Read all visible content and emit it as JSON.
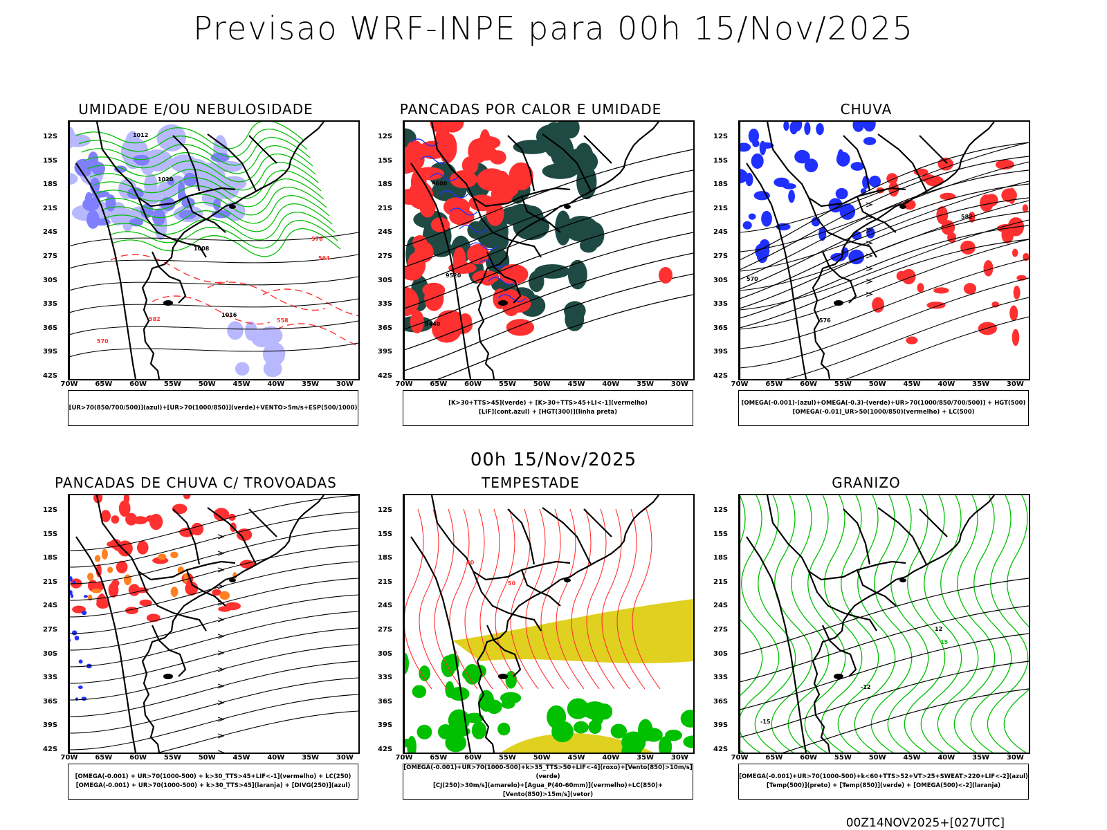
{
  "header": {
    "title": "Previsao WRF-INPE  para 00h 15/Nov/2025"
  },
  "mid_date": "00h 15/Nov/2025",
  "footer_stamp": "00Z14NOV2025+[027UTC]",
  "axes": {
    "lat_labels": [
      "12S",
      "15S",
      "18S",
      "21S",
      "24S",
      "27S",
      "30S",
      "33S",
      "36S",
      "39S",
      "42S"
    ],
    "lon_labels": [
      "70W",
      "65W",
      "60W",
      "55W",
      "50W",
      "45W",
      "40W",
      "35W",
      "30W"
    ]
  },
  "colors": {
    "blue_humidity": "#8080ff",
    "light_blue": "#b8b8ff",
    "green": "#00c000",
    "red": "#ff3030",
    "dark_teal": "#1f4a44",
    "orange": "#ff8020",
    "yellow": "#e0d020",
    "contour_blue": "#2030ff"
  },
  "panels": [
    {
      "id": "umidade",
      "title": "UMIDADE E/OU NEBULOSIDADE",
      "legend_lines": [
        "[UR>70(850/700/500)](azul)+[UR>70(1000/850)](verde)+VENTO>5m/s+ESP(500/1000)"
      ],
      "contour_labels": [
        "1012",
        "1016",
        "1020",
        "1008",
        "570",
        "582",
        "576",
        "564",
        "558"
      ]
    },
    {
      "id": "pancadas_calor",
      "title": "PANCADAS POR CALOR E UMIDADE",
      "legend_lines": [
        "[K>30+TTS>45](verde) + [K>30+TTS>45+LI<-1](vermelho)",
        "[LIF](cont.azul) + [HGT(300)](linha preta)"
      ],
      "contour_labels": [
        "9600",
        "9520",
        "9440"
      ]
    },
    {
      "id": "chuva",
      "title": "CHUVA",
      "legend_lines": [
        "[OMEGA(-0.001)-(azul)+OMEGA(-0.3)-(verde)+UR>70(1000/850/700/500)] + HGT(500)",
        "[OMEGA(-0.01)_UR>50(1000/850)(vermelho) + LC(500)"
      ],
      "contour_labels": [
        "582",
        "576",
        "570"
      ]
    },
    {
      "id": "pancadas_trovoadas",
      "title": "PANCADAS DE CHUVA C/ TROVOADAS",
      "legend_lines": [
        "[OMEGA(-0.001) + UR>70(1000-500) + k>30_TTS>45+LIF<-1](vermelho) + LC(250)",
        "[OMEGA(-0.001) + UR>70(1000-500) + k>30_TTS>45](laranja) + [DIVG(250)](azul)"
      ],
      "contour_labels": []
    },
    {
      "id": "tempestade",
      "title": "TEMPESTADE",
      "legend_lines": [
        "[OMEGA(-0.001)+UR>70(1000-500)+k>35_TTS>50+LIF<-4](roxo)+[Vento(850)>10m/s](verde)",
        "[CJ(250)>30m/s](amarelo)+[Agua_P(40-60mm)](vermelho)+LC(850)+[Vento(850)>15m/s](vetor)"
      ],
      "contour_labels": [
        "40",
        "50"
      ]
    },
    {
      "id": "granizo",
      "title": "GRANIZO",
      "legend_lines": [
        "[OMEGA(-0.001)+UR>70(1000-500)+k<60+TTS>52+VT>25+SWEAT>220+LIF<-2](azul)",
        "[Temp(500)](preto) + [Temp(850)](verde) + [OMEGA(500)<-2](laranja)"
      ],
      "contour_labels": [
        "12",
        "15",
        "-12",
        "-15"
      ]
    }
  ]
}
